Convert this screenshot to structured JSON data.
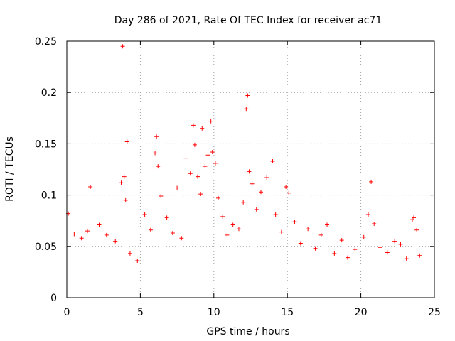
{
  "chart_data": {
    "type": "scatter",
    "title": "Day 286 of 2021, Rate Of TEC Index for receiver ac71",
    "xlabel": "GPS time / hours",
    "ylabel": "ROTI / TECUs",
    "xlim": [
      0,
      25
    ],
    "ylim": [
      0,
      0.25
    ],
    "x_ticks": [
      0,
      5,
      10,
      15,
      20,
      25
    ],
    "x_tick_labels": [
      "0",
      "5",
      "10",
      "15",
      "20",
      "25"
    ],
    "y_ticks": [
      0,
      0.05,
      0.1,
      0.15,
      0.2,
      0.25
    ],
    "y_tick_labels": [
      "0",
      "0.05",
      "0.1",
      "0.15",
      "0.2",
      "0.25"
    ],
    "grid": true,
    "marker": "+",
    "color": "#ff0000",
    "series": [
      {
        "name": "ROTI",
        "points": [
          [
            3.8,
            0.245
          ],
          [
            12.3,
            0.197
          ],
          [
            12.2,
            0.184
          ],
          [
            9.8,
            0.172
          ],
          [
            8.6,
            0.168
          ],
          [
            9.2,
            0.165
          ],
          [
            6.1,
            0.157
          ],
          [
            4.1,
            0.152
          ],
          [
            14.0,
            0.133
          ],
          [
            20.7,
            0.113
          ],
          [
            1.6,
            0.108
          ],
          [
            0.1,
            0.082
          ],
          [
            23.6,
            0.078
          ],
          [
            17.7,
            0.071
          ],
          [
            0.5,
            0.062
          ],
          [
            1.0,
            0.058
          ],
          [
            1.4,
            0.065
          ],
          [
            2.2,
            0.071
          ],
          [
            2.7,
            0.061
          ],
          [
            3.3,
            0.055
          ],
          [
            3.9,
            0.118
          ],
          [
            4.0,
            0.095
          ],
          [
            3.7,
            0.112
          ],
          [
            4.3,
            0.043
          ],
          [
            4.8,
            0.036
          ],
          [
            5.3,
            0.081
          ],
          [
            5.7,
            0.066
          ],
          [
            6.0,
            0.141
          ],
          [
            6.2,
            0.128
          ],
          [
            6.4,
            0.099
          ],
          [
            6.8,
            0.078
          ],
          [
            7.2,
            0.063
          ],
          [
            7.5,
            0.107
          ],
          [
            7.8,
            0.058
          ],
          [
            8.1,
            0.136
          ],
          [
            8.4,
            0.121
          ],
          [
            8.7,
            0.149
          ],
          [
            8.9,
            0.118
          ],
          [
            9.1,
            0.101
          ],
          [
            9.4,
            0.128
          ],
          [
            9.6,
            0.139
          ],
          [
            9.9,
            0.142
          ],
          [
            10.1,
            0.131
          ],
          [
            10.3,
            0.097
          ],
          [
            10.6,
            0.079
          ],
          [
            10.9,
            0.061
          ],
          [
            11.3,
            0.071
          ],
          [
            11.7,
            0.067
          ],
          [
            12.0,
            0.093
          ],
          [
            12.4,
            0.123
          ],
          [
            12.6,
            0.111
          ],
          [
            12.9,
            0.086
          ],
          [
            13.2,
            0.103
          ],
          [
            13.6,
            0.117
          ],
          [
            14.2,
            0.081
          ],
          [
            14.6,
            0.064
          ],
          [
            14.9,
            0.108
          ],
          [
            15.1,
            0.102
          ],
          [
            15.5,
            0.074
          ],
          [
            15.9,
            0.053
          ],
          [
            16.4,
            0.067
          ],
          [
            16.9,
            0.048
          ],
          [
            17.3,
            0.061
          ],
          [
            18.2,
            0.043
          ],
          [
            18.7,
            0.056
          ],
          [
            19.1,
            0.039
          ],
          [
            19.6,
            0.047
          ],
          [
            20.2,
            0.059
          ],
          [
            20.5,
            0.081
          ],
          [
            20.9,
            0.072
          ],
          [
            21.3,
            0.049
          ],
          [
            21.8,
            0.044
          ],
          [
            22.3,
            0.055
          ],
          [
            22.7,
            0.052
          ],
          [
            23.1,
            0.038
          ],
          [
            23.5,
            0.076
          ],
          [
            23.8,
            0.066
          ],
          [
            24.0,
            0.041
          ]
        ]
      }
    ]
  }
}
